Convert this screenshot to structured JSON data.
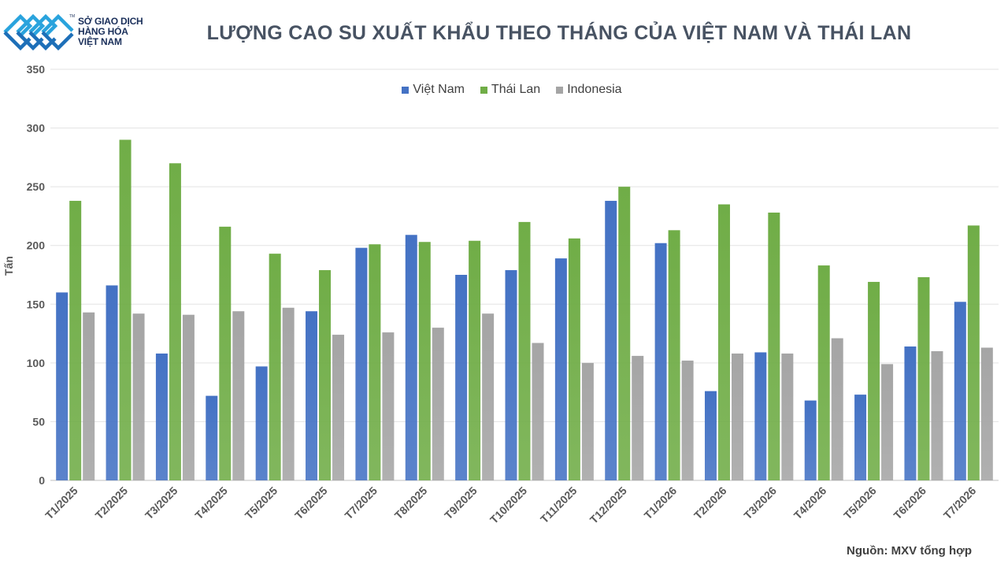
{
  "header": {
    "logo_line1": "SỞ GIAO DỊCH",
    "logo_line2": "HÀNG HÓA",
    "logo_line3": "VIỆT NAM",
    "logo_tm": "TM",
    "title": "LƯỢNG CAO SU XUẤT KHẨU THEO THÁNG CỦA VIỆT NAM VÀ THÁI LAN"
  },
  "footer": {
    "source": "Nguồn: MXV tổng hợp"
  },
  "chart_data": {
    "type": "bar",
    "title": "LƯỢNG CAO SU XUẤT KHẨU THEO THÁNG CỦA VIỆT NAM VÀ THÁI LAN",
    "xlabel": "",
    "ylabel": "Tấn",
    "ylim": [
      0,
      350
    ],
    "yticks": [
      0,
      50,
      100,
      150,
      200,
      250,
      300,
      350
    ],
    "grid": true,
    "legend_position": "top",
    "categories": [
      "T1/2025",
      "T2/2025",
      "T3/2025",
      "T4/2025",
      "T5/2025",
      "T6/2025",
      "T7/2025",
      "T8/2025",
      "T9/2025",
      "T10/2025",
      "T11/2025",
      "T12/2025",
      "T1/2026",
      "T2/2026",
      "T3/2026",
      "T4/2026",
      "T5/2026",
      "T6/2026",
      "T7/2026"
    ],
    "series": [
      {
        "name": "Việt Nam",
        "color": "#4472c4",
        "values": [
          160,
          166,
          108,
          72,
          97,
          144,
          198,
          209,
          175,
          179,
          189,
          238,
          202,
          76,
          109,
          68,
          73,
          114,
          152
        ]
      },
      {
        "name": "Thái Lan",
        "color": "#70ad47",
        "values": [
          238,
          290,
          270,
          216,
          193,
          179,
          201,
          203,
          204,
          220,
          206,
          250,
          213,
          235,
          228,
          183,
          169,
          173,
          217
        ]
      },
      {
        "name": "Indonesia",
        "color": "#a5a5a5",
        "values": [
          143,
          142,
          141,
          144,
          147,
          124,
          126,
          130,
          142,
          117,
          100,
          106,
          102,
          108,
          108,
          121,
          99,
          110,
          113
        ]
      }
    ]
  }
}
